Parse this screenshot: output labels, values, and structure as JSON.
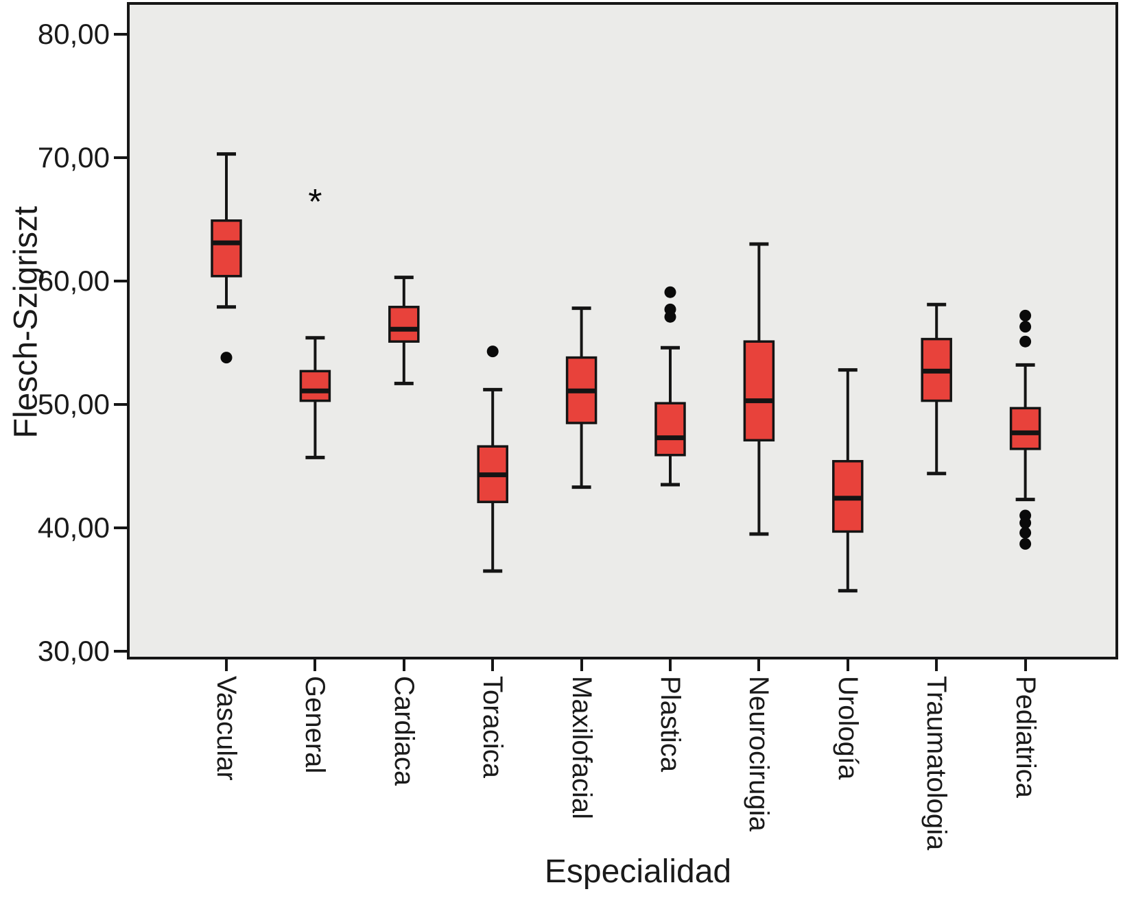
{
  "chart_data": {
    "type": "boxplot",
    "title": "",
    "xlabel": "Especialidad",
    "ylabel": "Flesch-Szigriszt",
    "grid": false,
    "legend": "none",
    "ylim": [
      29.6,
      82.3
    ],
    "plot_background": "#ebebe9",
    "box_fill": "#e8423b",
    "line_color": "#141414",
    "outlier_marker": "filled-circle",
    "extreme_marker": "asterisk",
    "y_ticks": [
      {
        "value": 80,
        "label": "80,00"
      },
      {
        "value": 70,
        "label": "70,00"
      },
      {
        "value": 60,
        "label": "60,00"
      },
      {
        "value": 50,
        "label": "50,00"
      },
      {
        "value": 40,
        "label": "40,00"
      },
      {
        "value": 30,
        "label": "30,00"
      }
    ],
    "categories": [
      "Vascular",
      "General",
      "Cardiaca",
      "Toracica",
      "Maxilofacial",
      "Plastica",
      "Neurocirugia",
      "Urología",
      "Traumatologia",
      "Pediatrica"
    ],
    "boxes": [
      {
        "category": "Vascular",
        "whisker_low": 57.9,
        "q1": 60.4,
        "median": 63.1,
        "q3": 64.9,
        "whisker_high": 70.3,
        "outliers": [
          53.8
        ],
        "extremes": []
      },
      {
        "category": "General",
        "whisker_low": 45.7,
        "q1": 50.3,
        "median": 51.1,
        "q3": 52.7,
        "whisker_high": 55.4,
        "outliers": [],
        "extremes": [
          66.6
        ]
      },
      {
        "category": "Cardiaca",
        "whisker_low": 51.7,
        "q1": 55.1,
        "median": 56.1,
        "q3": 57.9,
        "whisker_high": 60.3,
        "outliers": [],
        "extremes": []
      },
      {
        "category": "Toracica",
        "whisker_low": 36.5,
        "q1": 42.1,
        "median": 44.3,
        "q3": 46.6,
        "whisker_high": 51.2,
        "outliers": [
          54.3
        ],
        "extremes": []
      },
      {
        "category": "Maxilofacial",
        "whisker_low": 43.3,
        "q1": 48.5,
        "median": 51.1,
        "q3": 53.8,
        "whisker_high": 57.8,
        "outliers": [],
        "extremes": []
      },
      {
        "category": "Plastica",
        "whisker_low": 43.5,
        "q1": 45.9,
        "median": 47.3,
        "q3": 50.1,
        "whisker_high": 54.6,
        "outliers": [
          57.1,
          57.7,
          59.1
        ],
        "extremes": []
      },
      {
        "category": "Neurocirugia",
        "whisker_low": 39.5,
        "q1": 47.1,
        "median": 50.3,
        "q3": 55.1,
        "whisker_high": 63.0,
        "outliers": [],
        "extremes": []
      },
      {
        "category": "Urología",
        "whisker_low": 34.9,
        "q1": 39.7,
        "median": 42.4,
        "q3": 45.4,
        "whisker_high": 52.8,
        "outliers": [],
        "extremes": []
      },
      {
        "category": "Traumatologia",
        "whisker_low": 44.4,
        "q1": 50.3,
        "median": 52.7,
        "q3": 55.3,
        "whisker_high": 58.1,
        "outliers": [],
        "extremes": []
      },
      {
        "category": "Pediatrica",
        "whisker_low": 42.3,
        "q1": 46.4,
        "median": 47.7,
        "q3": 49.7,
        "whisker_high": 53.2,
        "outliers": [
          57.2,
          56.3,
          55.1,
          41.0,
          40.4,
          39.6,
          38.7
        ],
        "extremes": []
      }
    ]
  }
}
